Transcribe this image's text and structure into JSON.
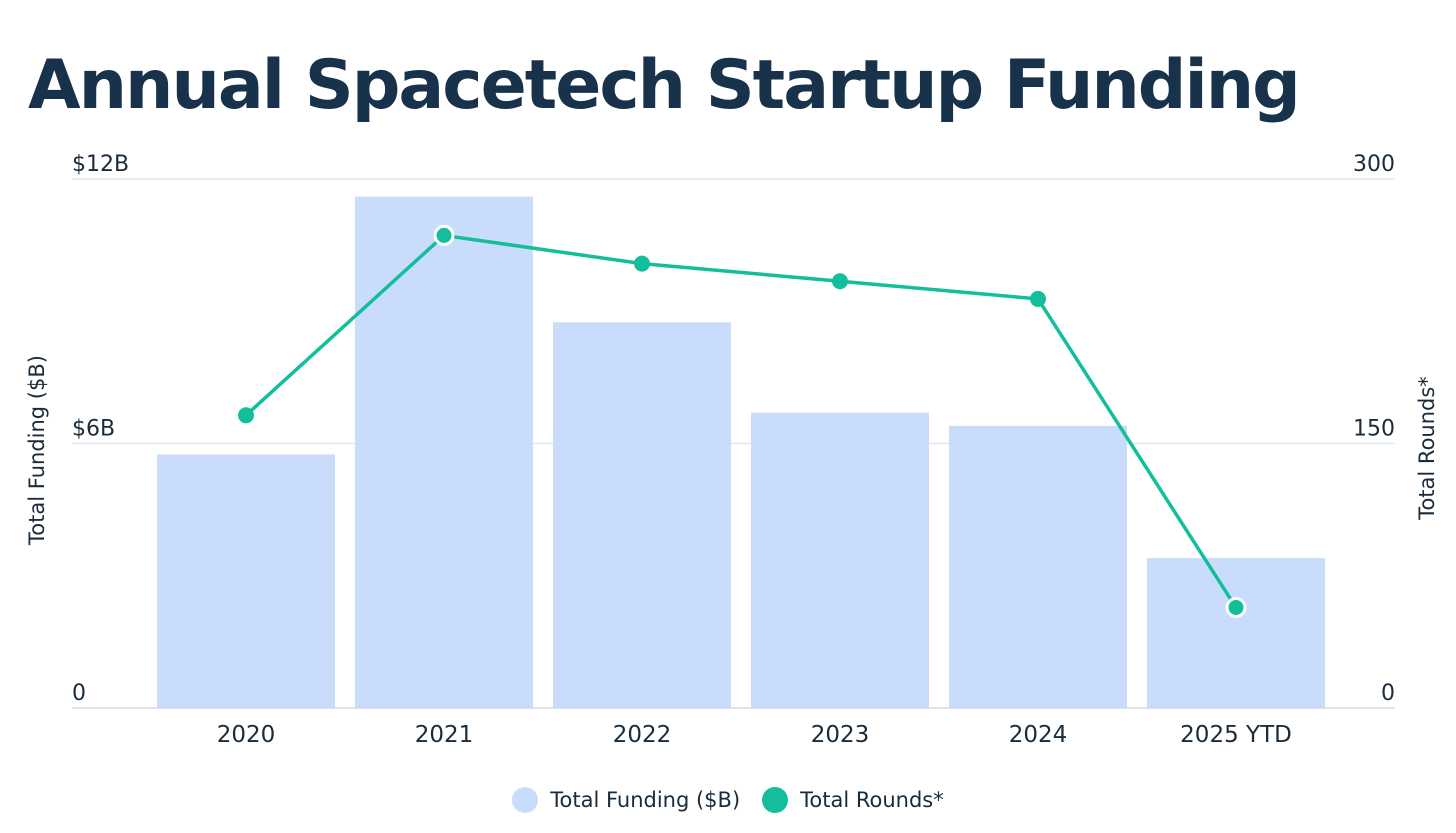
{
  "colors": {
    "bar": "#cadcfc",
    "line": "#12bf9a",
    "title": "#17324a",
    "grid": "#e3e6ea",
    "text": "#1a2b3c"
  },
  "chart_data": {
    "type": "bar",
    "title": "Annual Spacetech Startup Funding",
    "categories": [
      "2020",
      "2021",
      "2022",
      "2023",
      "2024",
      "2025 YTD"
    ],
    "series": [
      {
        "name": "Total Funding ($B)",
        "type": "bar",
        "axis": "left",
        "values": [
          5.75,
          11.6,
          8.75,
          6.7,
          6.4,
          3.4
        ]
      },
      {
        "name": "Total Rounds*",
        "type": "line",
        "axis": "right",
        "values": [
          166,
          268,
          252,
          242,
          232,
          57
        ]
      }
    ],
    "ylabel": "Total Funding ($B)",
    "y2label": "Total Rounds*",
    "ylim": [
      0,
      12
    ],
    "y2lim": [
      0,
      300
    ],
    "yticks": [
      {
        "value": 0,
        "label": "0"
      },
      {
        "value": 6,
        "label": "$6B"
      },
      {
        "value": 12,
        "label": "$12B"
      }
    ],
    "y2ticks": [
      {
        "value": 0,
        "label": "0"
      },
      {
        "value": 150,
        "label": "150"
      },
      {
        "value": 300,
        "label": "300"
      }
    ],
    "legend": {
      "position": "bottom-center",
      "items": [
        "Total Funding ($B)",
        "Total Rounds*"
      ]
    }
  }
}
